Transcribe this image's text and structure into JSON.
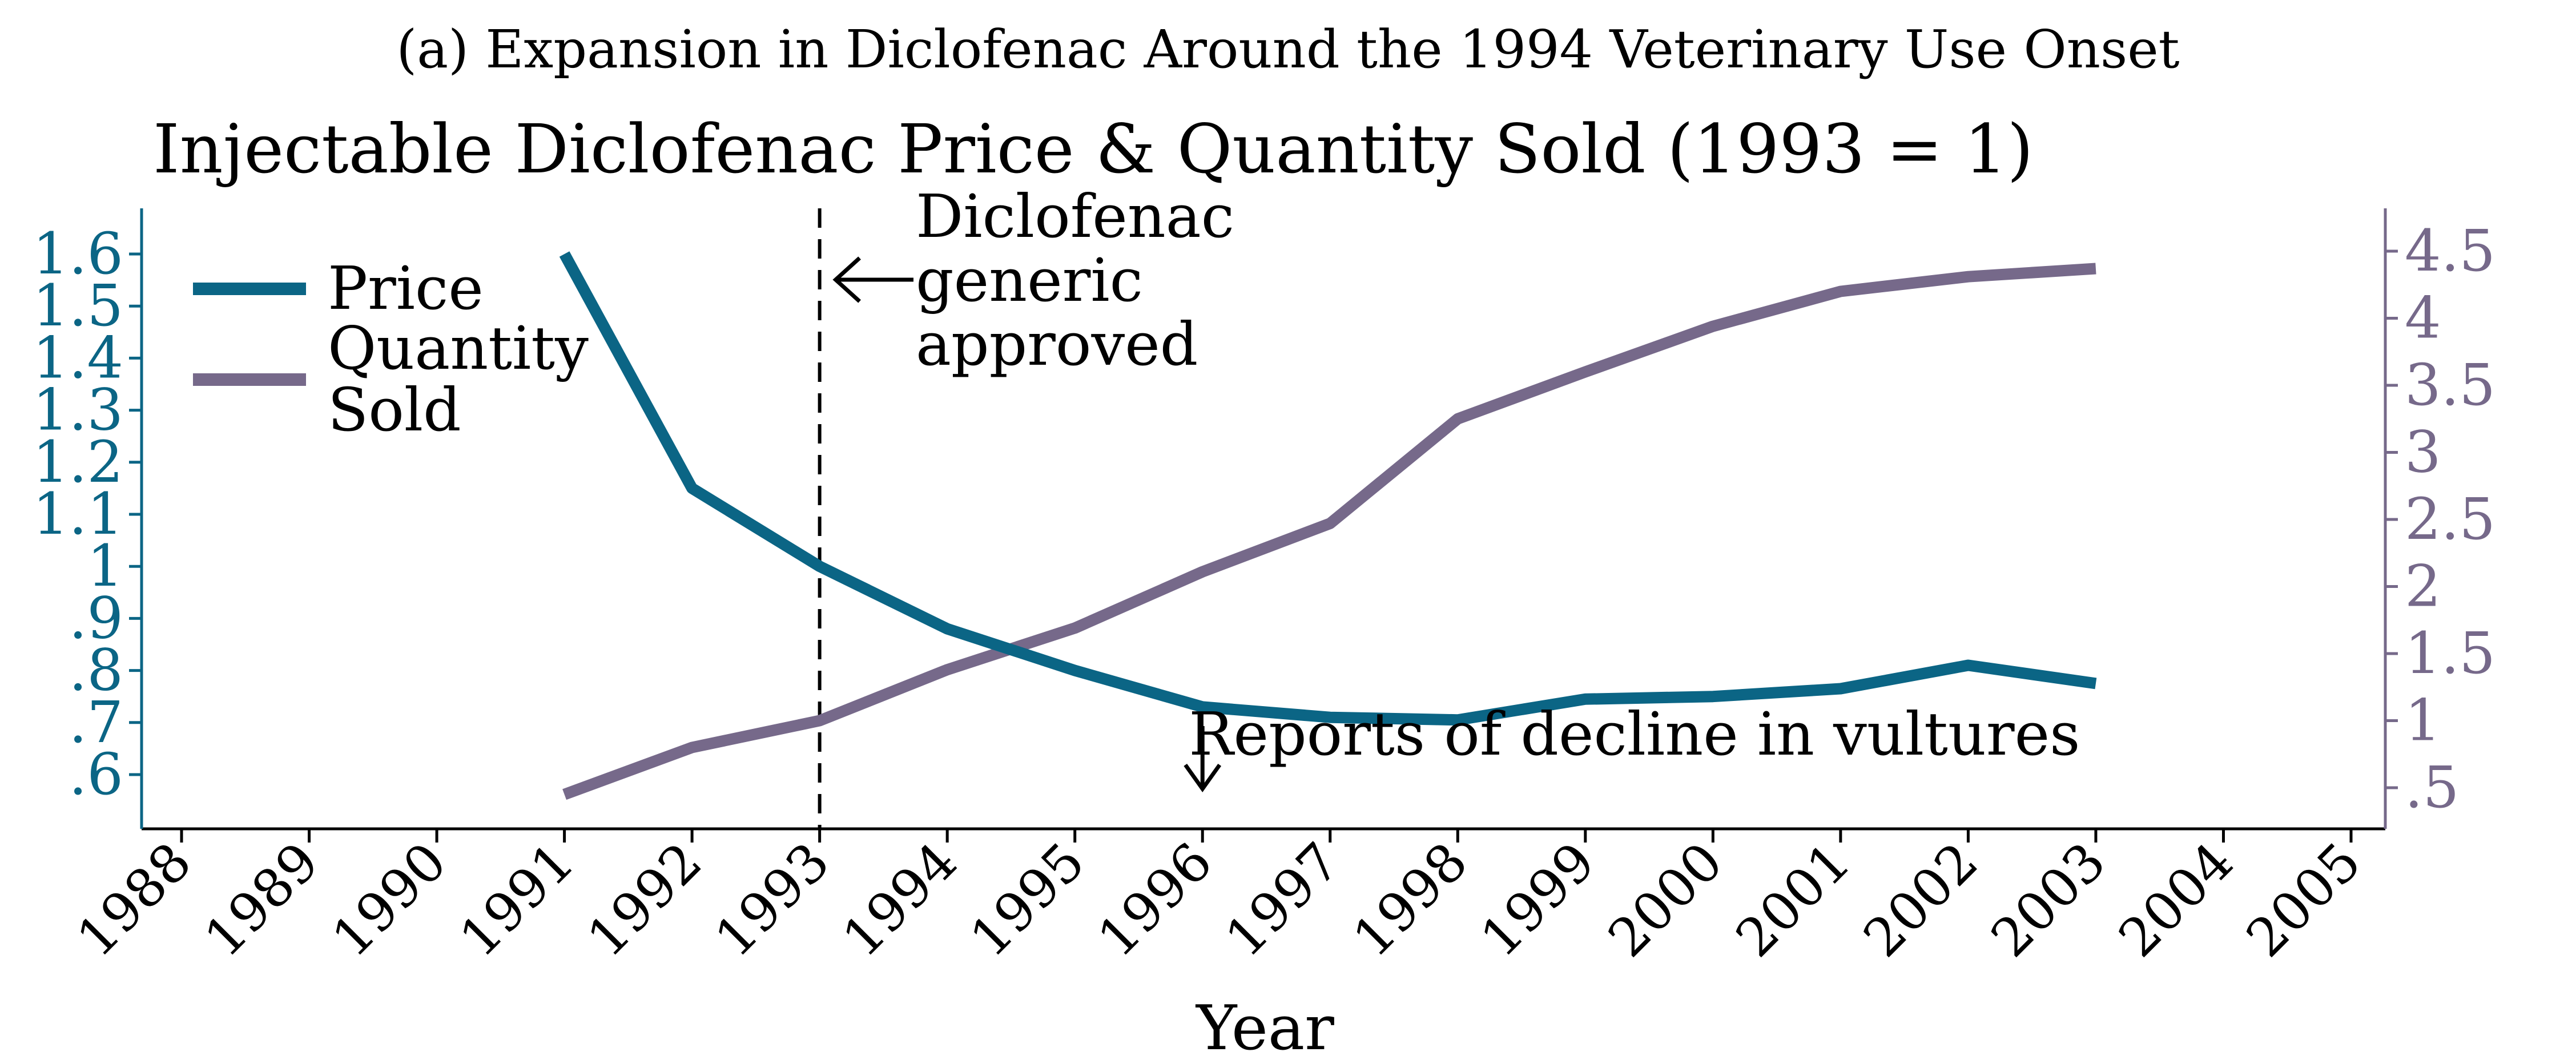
{
  "panel_title": "(a) Expansion in Diclofenac Around the 1994 Veterinary Use Onset",
  "colors": {
    "price": "#0b6585",
    "quantity": "#76698a",
    "left_axis": "#0b6585",
    "right_axis": "#76698a",
    "text": "#000000"
  },
  "chart_data": {
    "type": "line",
    "title": "Injectable Diclofenac Price & Quantity Sold (1993 = 1)",
    "xlabel": "Year",
    "x_ticks": [
      "1988",
      "1989",
      "1990",
      "1991",
      "1992",
      "1993",
      "1994",
      "1995",
      "1996",
      "1997",
      "1998",
      "1999",
      "2000",
      "2001",
      "2002",
      "2003",
      "2004",
      "2005"
    ],
    "xlim": [
      1988,
      2005
    ],
    "left_axis": {
      "ylim": [
        0.5,
        1.65
      ],
      "ticks": [
        0.6,
        0.7,
        0.8,
        0.9,
        1.0,
        1.1,
        1.2,
        1.3,
        1.4,
        1.5,
        1.6
      ],
      "tick_labels": [
        ".6",
        ".7",
        ".8",
        ".9",
        "1",
        "1.1",
        "1.2",
        "1.3",
        "1.4",
        "1.5",
        "1.6"
      ]
    },
    "right_axis": {
      "ylim": [
        0.15,
        4.7
      ],
      "ticks": [
        0.5,
        1,
        1.5,
        2,
        2.5,
        3,
        3.5,
        4,
        4.5
      ],
      "tick_labels": [
        ".5",
        "1",
        "1.5",
        "2",
        "2.5",
        "3",
        "3.5",
        "4",
        "4.5"
      ]
    },
    "series": [
      {
        "name": "Price",
        "axis": "left",
        "x": [
          1991,
          1992,
          1993,
          1994,
          1995,
          1996,
          1997,
          1998,
          1999,
          2000,
          2001,
          2002,
          2003
        ],
        "values": [
          1.6,
          1.15,
          1.0,
          0.88,
          0.8,
          0.73,
          0.71,
          0.705,
          0.745,
          0.75,
          0.765,
          0.81,
          0.775
        ]
      },
      {
        "name": "Quantity Sold",
        "axis": "right",
        "x": [
          1991,
          1992,
          1993,
          1994,
          1995,
          1996,
          1997,
          1998,
          1999,
          2000,
          2001,
          2002,
          2003
        ],
        "values": [
          0.45,
          0.8,
          1.0,
          1.38,
          1.69,
          2.11,
          2.47,
          3.25,
          3.6,
          3.94,
          4.2,
          4.31,
          4.37
        ]
      }
    ],
    "legend": {
      "placement": "top-left",
      "entries": [
        {
          "lines": [
            "Price"
          ]
        },
        {
          "lines": [
            "Quantity",
            "Sold"
          ]
        }
      ]
    },
    "annotations": [
      {
        "x": 1993,
        "lines": [
          "Diclofenac",
          "generic",
          "approved"
        ],
        "arrow": "left"
      },
      {
        "x": 1996,
        "lines": [
          "Reports of decline in vultures"
        ],
        "arrow": "down"
      }
    ],
    "vline_x": 1993,
    "grid": false
  }
}
